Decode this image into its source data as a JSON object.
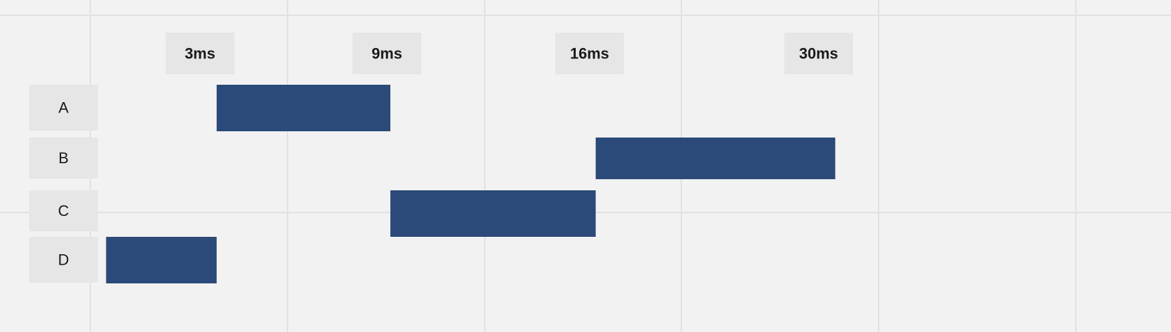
{
  "chart_data": {
    "type": "gantt",
    "x_unit": "ms",
    "rows": [
      "A",
      "B",
      "C",
      "D"
    ],
    "tasks": [
      {
        "row": "A",
        "start": 4.8,
        "end": 11.4
      },
      {
        "row": "B",
        "start": 19.2,
        "end": 28.3
      },
      {
        "row": "C",
        "start": 11.4,
        "end": 19.2
      },
      {
        "row": "D",
        "start": 0.6,
        "end": 4.8
      }
    ],
    "markers": [
      {
        "label": "3ms",
        "value": 4.3
      },
      {
        "label": "9ms",
        "value": 11.4
      },
      {
        "label": "16ms",
        "value": 19.1
      },
      {
        "label": "30ms",
        "value": 27.8
      }
    ],
    "colors": {
      "bar": "#2b4a7a",
      "background": "#f2f2f2",
      "grid": "#e1e1e1",
      "label_box": "#e6e6e6",
      "text": "#1a1a1a"
    }
  }
}
